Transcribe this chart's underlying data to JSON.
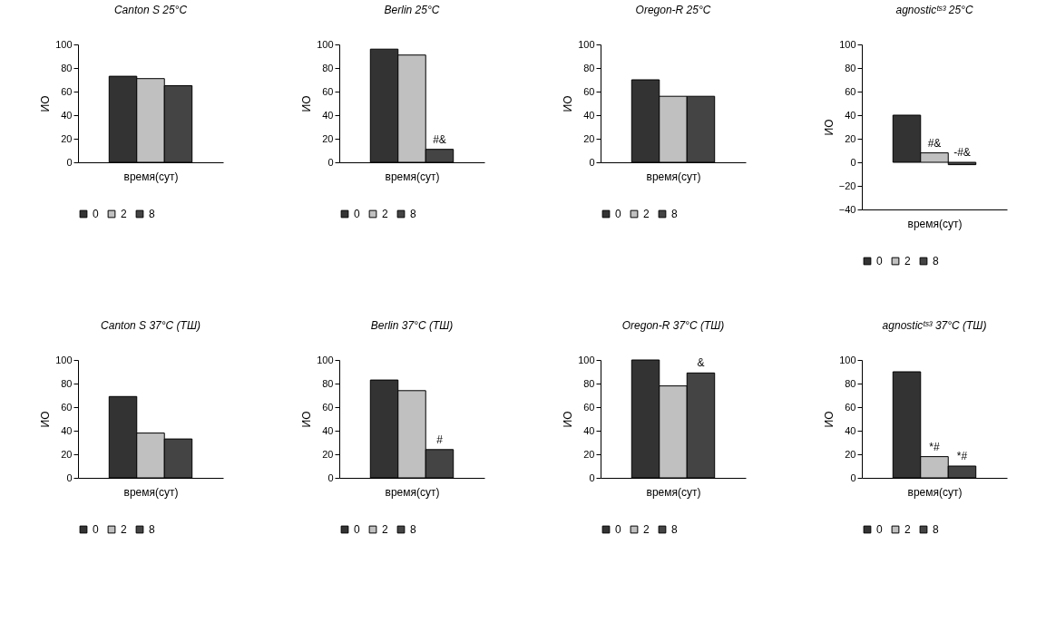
{
  "chart_data": [
    {
      "type": "bar",
      "title": "Canton S 25°C",
      "xlabel": "время(сут)",
      "ylabel": "ИО",
      "categories": [
        null
      ],
      "series": [
        {
          "name": "0",
          "color": "#333333",
          "values": [
            73
          ]
        },
        {
          "name": "2",
          "color": "#c0c0c0",
          "values": [
            71
          ]
        },
        {
          "name": "8",
          "color": "#444444",
          "values": [
            65
          ]
        }
      ],
      "ylim": [
        0,
        100
      ],
      "yticks": [
        0,
        20,
        40,
        60,
        80,
        100
      ],
      "legend": "bottom",
      "tick_labels": "y"
    },
    {
      "type": "bar",
      "title": "Berlin 25°C",
      "xlabel": "время(сут)",
      "ylabel": "ИО",
      "categories": [
        null
      ],
      "series": [
        {
          "name": "0",
          "color": "#333333",
          "values": [
            96
          ]
        },
        {
          "name": "2",
          "color": "#c0c0c0",
          "values": [
            91
          ]
        },
        {
          "name": "8",
          "color": "#444444",
          "values": [
            11
          ]
        }
      ],
      "ylim": [
        0,
        100
      ],
      "yticks": [
        0,
        20,
        40,
        60,
        80,
        100
      ],
      "legend": "bottom",
      "tick_labels": "y",
      "annotations": [
        "#&"
      ]
    },
    {
      "type": "bar",
      "title": "Oregon-R 25°C",
      "xlabel": "время(сут)",
      "ylabel": "ИО",
      "categories": [
        null
      ],
      "series": [
        {
          "name": "0",
          "color": "#333333",
          "values": [
            70
          ]
        },
        {
          "name": "2",
          "color": "#c0c0c0",
          "values": [
            56
          ]
        },
        {
          "name": "8",
          "color": "#444444",
          "values": [
            56
          ]
        }
      ],
      "ylim": [
        0,
        100
      ],
      "yticks": [
        0,
        20,
        40,
        60,
        80,
        100
      ],
      "legend": "bottom",
      "tick_labels": "y"
    },
    {
      "type": "bar",
      "title": "agnosticᵗˢ³ 25°C",
      "xlabel": "время(сут)",
      "ylabel": "ИО",
      "categories": [
        null
      ],
      "series": [
        {
          "name": "0",
          "color": "#333333",
          "values": [
            40
          ]
        },
        {
          "name": "2",
          "color": "#c0c0c0",
          "values": [
            8
          ]
        },
        {
          "name": "8",
          "color": "#444444",
          "values": [
            -2
          ]
        }
      ],
      "ylim": [
        -40,
        100
      ],
      "yticks": [
        -40,
        -20,
        0,
        20,
        40,
        60,
        80,
        100
      ],
      "legend": "bottom",
      "tick_labels": "y",
      "annotations": [
        "#&",
        "-#&"
      ]
    },
    {
      "type": "bar",
      "title": "Canton S 37°C (ТШ)",
      "xlabel": "время(сут)",
      "ylabel": "ИО",
      "categories": [
        null
      ],
      "series": [
        {
          "name": "0",
          "color": "#333333",
          "values": [
            69
          ]
        },
        {
          "name": "2",
          "color": "#c0c0c0",
          "values": [
            38
          ]
        },
        {
          "name": "8",
          "color": "#444444",
          "values": [
            33
          ]
        }
      ],
      "ylim": [
        0,
        100
      ],
      "yticks": [
        0,
        20,
        40,
        60,
        80,
        100
      ],
      "legend": "bottom",
      "tick_labels": "y"
    },
    {
      "type": "bar",
      "title": "Berlin 37°C (ТШ)",
      "xlabel": "время(сут)",
      "ylabel": "ИО",
      "categories": [
        null
      ],
      "series": [
        {
          "name": "0",
          "color": "#333333",
          "values": [
            83
          ]
        },
        {
          "name": "2",
          "color": "#c0c0c0",
          "values": [
            74
          ]
        },
        {
          "name": "8",
          "color": "#444444",
          "values": [
            24
          ]
        }
      ],
      "ylim": [
        0,
        100
      ],
      "yticks": [
        0,
        20,
        40,
        60,
        80,
        100
      ],
      "legend": "bottom",
      "tick_labels": "y",
      "annotations": [
        "#"
      ]
    },
    {
      "type": "bar",
      "title": "Oregon-R 37°C (ТШ)",
      "xlabel": "время(сут)",
      "ylabel": "ИО",
      "categories": [
        null
      ],
      "series": [
        {
          "name": "0",
          "color": "#333333",
          "values": [
            100
          ]
        },
        {
          "name": "2",
          "color": "#c0c0c0",
          "values": [
            78
          ]
        },
        {
          "name": "8",
          "color": "#444444",
          "values": [
            89
          ]
        }
      ],
      "ylim": [
        0,
        100
      ],
      "yticks": [
        0,
        20,
        40,
        60,
        80,
        100
      ],
      "legend": "bottom",
      "tick_labels": "y",
      "annotations": [
        "&"
      ]
    },
    {
      "type": "bar",
      "title": "agnosticᵗˢ³ 37°C (ТШ)",
      "xlabel": "время(сут)",
      "ylabel": "ИО",
      "categories": [
        null
      ],
      "series": [
        {
          "name": "0",
          "color": "#333333",
          "values": [
            90
          ]
        },
        {
          "name": "2",
          "color": "#c0c0c0",
          "values": [
            18
          ]
        },
        {
          "name": "8",
          "color": "#444444",
          "values": [
            10
          ]
        }
      ],
      "ylim": [
        0,
        100
      ],
      "yticks": [
        0,
        20,
        40,
        60,
        80,
        100
      ],
      "legend": "bottom",
      "tick_labels": "y",
      "annotations": [
        "*#",
        "*#"
      ]
    }
  ]
}
